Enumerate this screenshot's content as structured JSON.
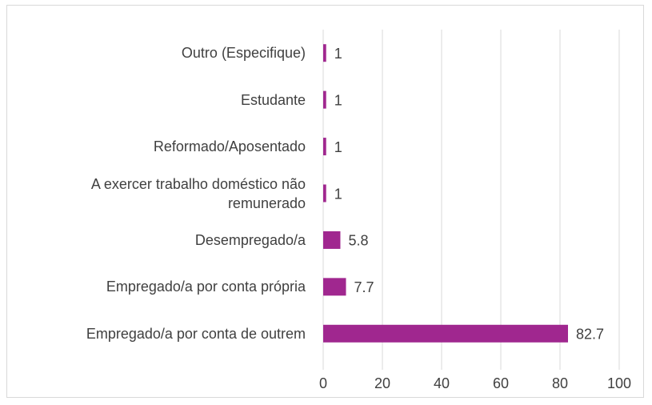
{
  "chart_data": {
    "type": "bar",
    "orientation": "horizontal",
    "categories": [
      "Outro (Especifique)",
      "Estudante",
      "Reformado/Aposentado",
      "A exercer trabalho doméstico não remunerado",
      "Desempregado/a",
      "Empregado/a por conta própria",
      "Empregado/a por conta de outrem"
    ],
    "values": [
      1,
      1,
      1,
      1,
      5.8,
      7.7,
      82.7
    ],
    "color": "#a0278f",
    "xlim": [
      0,
      100
    ],
    "xticks": [
      0,
      20,
      40,
      60,
      80,
      100
    ],
    "grid": true
  }
}
